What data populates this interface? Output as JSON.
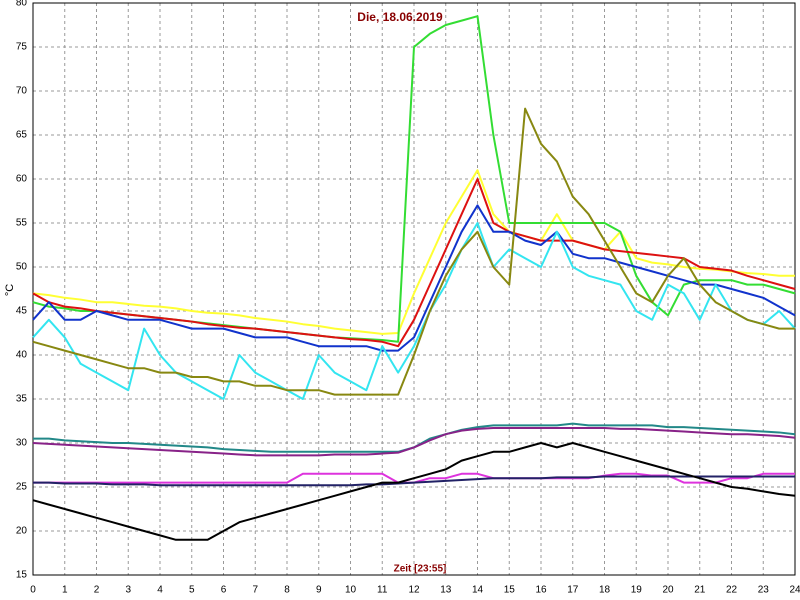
{
  "chart_data": {
    "type": "line",
    "title": "Die, 18.06.2019",
    "xlabel": "Zeit [23:55]",
    "ylabel": "°C",
    "x": [
      0,
      0.5,
      1,
      1.5,
      2,
      2.5,
      3,
      3.5,
      4,
      4.5,
      5,
      5.5,
      6,
      6.5,
      7,
      7.5,
      8,
      8.5,
      9,
      9.5,
      10,
      10.5,
      11,
      11.5,
      12,
      12.5,
      13,
      13.5,
      14,
      14.5,
      15,
      15.5,
      16,
      16.5,
      17,
      17.5,
      18,
      18.5,
      19,
      19.5,
      20,
      20.5,
      21,
      21.5,
      22,
      22.5,
      23,
      23.5,
      24
    ],
    "xlim": [
      0,
      24
    ],
    "xticks": [
      0,
      1,
      2,
      3,
      4,
      5,
      6,
      7,
      8,
      9,
      10,
      11,
      12,
      13,
      14,
      15,
      16,
      17,
      18,
      19,
      20,
      21,
      22,
      23,
      24
    ],
    "ylim": [
      15,
      80
    ],
    "yticks": [
      15,
      20,
      25,
      30,
      35,
      40,
      45,
      50,
      55,
      60,
      65,
      70,
      75,
      80
    ],
    "grid": true,
    "series": [
      {
        "color": "#ffff33",
        "values": [
          47,
          46.8,
          46.5,
          46.3,
          46,
          46,
          45.8,
          45.6,
          45.5,
          45.3,
          45,
          44.8,
          44.7,
          44.5,
          44.2,
          44,
          43.8,
          43.5,
          43.3,
          43,
          42.8,
          42.6,
          42.4,
          42.5,
          47,
          51,
          55,
          58,
          61,
          56,
          54,
          53.5,
          53,
          56,
          53,
          52.5,
          52,
          54,
          51,
          50.5,
          50.3,
          50,
          49.8,
          49.7,
          49.5,
          49.3,
          49.2,
          49,
          49
        ]
      },
      {
        "color": "#33dd33",
        "values": [
          46,
          45.5,
          45.3,
          45,
          45,
          44.8,
          44.6,
          44.4,
          44.2,
          44,
          43.8,
          43.6,
          43.4,
          43.2,
          43,
          42.8,
          42.6,
          42.4,
          42.2,
          42,
          41.9,
          41.8,
          41.7,
          41.5,
          75,
          76.5,
          77.5,
          78,
          78.5,
          65,
          55,
          55,
          55,
          55,
          55,
          55,
          55,
          54,
          49,
          46,
          44.5,
          48,
          48.5,
          48.5,
          48.5,
          48,
          48,
          47.5,
          47
        ]
      },
      {
        "color": "#dd1111",
        "values": [
          47,
          46,
          45.5,
          45.3,
          45,
          44.8,
          44.6,
          44.4,
          44.2,
          44,
          43.8,
          43.5,
          43.3,
          43.1,
          43,
          42.8,
          42.6,
          42.4,
          42.2,
          42,
          41.8,
          41.7,
          41.5,
          41,
          44,
          48,
          52,
          56,
          60,
          55,
          54,
          53.5,
          53,
          53,
          53,
          52.5,
          52,
          51.8,
          51.6,
          51.4,
          51.2,
          51,
          50,
          49.8,
          49.6,
          49,
          48.5,
          48,
          47.5
        ]
      },
      {
        "color": "#1133cc",
        "values": [
          44,
          46,
          44,
          44,
          45,
          44.5,
          44,
          44,
          44,
          43.5,
          43,
          43,
          43,
          42.5,
          42,
          42,
          42,
          41.5,
          41,
          41,
          41,
          41,
          40.5,
          40.5,
          42,
          46,
          50,
          54,
          57,
          54,
          54,
          53,
          52.5,
          54,
          51.5,
          51,
          51,
          50.5,
          50,
          49.5,
          49,
          48.5,
          48,
          48,
          47.5,
          47,
          46.5,
          45.5,
          44.5
        ]
      },
      {
        "color": "#33e5f0",
        "values": [
          42,
          44,
          42,
          39,
          38,
          37,
          36,
          43,
          40,
          38,
          37,
          36,
          35,
          40,
          38,
          37,
          36,
          35,
          40,
          38,
          37,
          36,
          41,
          38,
          41,
          45,
          48,
          52,
          55,
          50,
          52,
          51,
          50,
          54,
          50,
          49,
          48.5,
          48,
          45,
          44,
          48,
          47,
          44,
          48,
          45,
          44,
          43.5,
          45,
          43
        ]
      },
      {
        "color": "#888811",
        "values": [
          41.5,
          41,
          40.5,
          40,
          39.5,
          39,
          38.5,
          38.5,
          38,
          38,
          37.5,
          37.5,
          37,
          37,
          36.5,
          36.5,
          36,
          36,
          36,
          35.5,
          35.5,
          35.5,
          35.5,
          35.5,
          40,
          45,
          49,
          52,
          54,
          50,
          48,
          68,
          64,
          62,
          58,
          56,
          53,
          50,
          47,
          46,
          49,
          51,
          48,
          46,
          45,
          44,
          43.5,
          43,
          43
        ]
      },
      {
        "color": "#228888",
        "values": [
          30.5,
          30.5,
          30.3,
          30.2,
          30.1,
          30,
          30,
          29.9,
          29.8,
          29.7,
          29.6,
          29.5,
          29.3,
          29.2,
          29.1,
          29,
          29,
          29,
          29,
          29,
          29,
          29,
          29,
          29,
          29.5,
          30.5,
          31,
          31.5,
          31.8,
          32,
          32,
          32,
          32,
          32,
          32.2,
          32,
          32,
          32,
          32,
          32,
          31.8,
          31.8,
          31.7,
          31.6,
          31.5,
          31.4,
          31.3,
          31.2,
          31
        ]
      },
      {
        "color": "#882288",
        "values": [
          30,
          29.9,
          29.8,
          29.7,
          29.6,
          29.5,
          29.4,
          29.3,
          29.2,
          29.1,
          29,
          28.9,
          28.8,
          28.7,
          28.6,
          28.6,
          28.6,
          28.6,
          28.6,
          28.7,
          28.7,
          28.7,
          28.8,
          28.9,
          29.5,
          30.3,
          31,
          31.4,
          31.6,
          31.7,
          31.7,
          31.7,
          31.7,
          31.7,
          31.7,
          31.7,
          31.7,
          31.6,
          31.6,
          31.5,
          31.4,
          31.3,
          31.2,
          31.1,
          31,
          31,
          30.9,
          30.8,
          30.6
        ]
      },
      {
        "color": "#dd33dd",
        "values": [
          25.5,
          25.5,
          25.5,
          25.5,
          25.5,
          25.5,
          25.5,
          25.5,
          25.5,
          25.5,
          25.5,
          25.5,
          25.5,
          25.5,
          25.5,
          25.5,
          25.5,
          26.5,
          26.5,
          26.5,
          26.5,
          26.5,
          26.5,
          25.5,
          25.5,
          26,
          26,
          26.5,
          26.5,
          26,
          26,
          26,
          26,
          26,
          26,
          26,
          26.3,
          26.5,
          26.5,
          26.3,
          26.3,
          25.5,
          25.5,
          25.5,
          26,
          26,
          26.5,
          26.5,
          26.5
        ]
      },
      {
        "color": "#222266",
        "values": [
          25.5,
          25.5,
          25.4,
          25.4,
          25.4,
          25.3,
          25.3,
          25.3,
          25.2,
          25.2,
          25.2,
          25.2,
          25.2,
          25.2,
          25.2,
          25.2,
          25.2,
          25.2,
          25.2,
          25.2,
          25.2,
          25.3,
          25.3,
          25.4,
          25.5,
          25.6,
          25.7,
          25.8,
          25.9,
          26,
          26,
          26,
          26,
          26.1,
          26.1,
          26.1,
          26.2,
          26.2,
          26.2,
          26.2,
          26.2,
          26.2,
          26.2,
          26.2,
          26.2,
          26.2,
          26.2,
          26.2,
          26.2
        ]
      },
      {
        "color": "#000000",
        "values": [
          23.5,
          23,
          22.5,
          22,
          21.5,
          21,
          20.5,
          20,
          19.5,
          19,
          19,
          19,
          20,
          21,
          21.5,
          22,
          22.5,
          23,
          23.5,
          24,
          24.5,
          25,
          25.5,
          25.5,
          26,
          26.5,
          27,
          28,
          28.5,
          29,
          29,
          29.5,
          30,
          29.5,
          30,
          29.5,
          29,
          28.5,
          28,
          27.5,
          27,
          26.5,
          26,
          25.5,
          25,
          24.8,
          24.5,
          24.2,
          24
        ]
      }
    ]
  }
}
